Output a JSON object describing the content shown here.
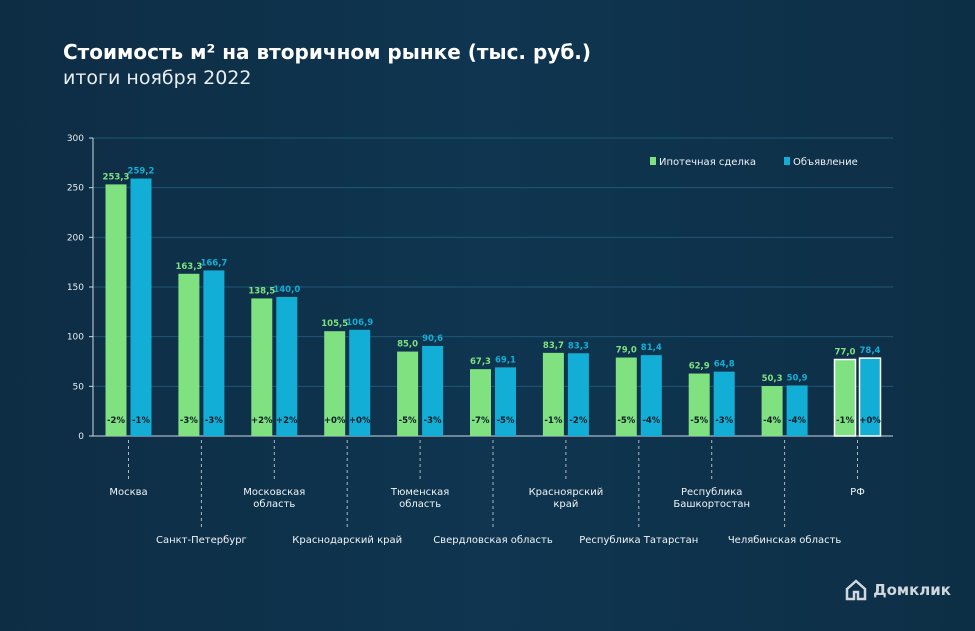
{
  "chart_data": {
    "type": "bar",
    "title": "Стоимость м² на вторичном рынке (тыс. руб.)",
    "subtitle": "итоги ноября 2022",
    "ylim": [
      0,
      300
    ],
    "yticks": [
      0,
      50,
      100,
      150,
      200,
      250,
      300
    ],
    "grid": true,
    "legend_position": "top-right",
    "categories": [
      [
        "Москва"
      ],
      [
        "Санкт-Петербург"
      ],
      [
        "Московская",
        "область"
      ],
      [
        "Краснодарский край"
      ],
      [
        "Тюменская",
        "область"
      ],
      [
        "Свердловская область"
      ],
      [
        "Красноярский",
        "край"
      ],
      [
        "Республика Татарстан"
      ],
      [
        "Республика",
        "Башкортостан"
      ],
      [
        "Челябинская область"
      ],
      [
        "РФ"
      ]
    ],
    "series": [
      {
        "name": "Ипотечная сделка",
        "color": "#7fe17f",
        "values": [
          253.3,
          163.3,
          138.5,
          105.5,
          85.0,
          67.3,
          83.7,
          79.0,
          62.9,
          50.3,
          77.0
        ],
        "labels": [
          "253,3",
          "163,3",
          "138,5",
          "105,5",
          "85,0",
          "67,3",
          "83,7",
          "79,0",
          "62,9",
          "50,3",
          "77,0"
        ],
        "changes": [
          "-2%",
          "-3%",
          "+2%",
          "+0%",
          "-5%",
          "-7%",
          "-1%",
          "-5%",
          "-5%",
          "-4%",
          "-1%"
        ]
      },
      {
        "name": "Объявление",
        "color": "#12aed6",
        "values": [
          259.2,
          166.7,
          140.0,
          106.9,
          90.6,
          69.1,
          83.3,
          81.4,
          64.8,
          50.9,
          78.4
        ],
        "labels": [
          "259,2",
          "166,7",
          "140,0",
          "106,9",
          "90,6",
          "69,1",
          "83,3",
          "81,4",
          "64,8",
          "50,9",
          "78,4"
        ],
        "changes": [
          "-1%",
          "-3%",
          "+2%",
          "+0%",
          "-3%",
          "-5%",
          "-2%",
          "-4%",
          "-3%",
          "-4%",
          "+0%"
        ]
      }
    ]
  },
  "brand": {
    "name": "Домклик"
  }
}
